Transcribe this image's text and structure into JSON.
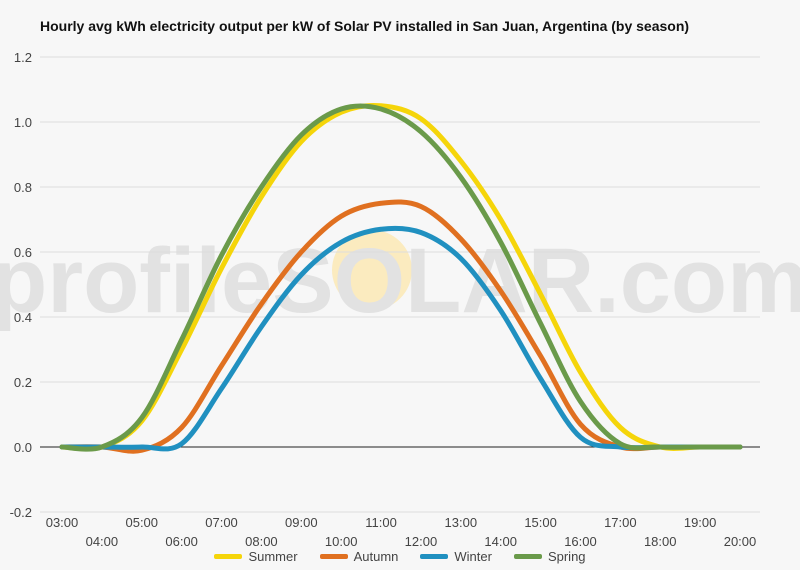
{
  "chart_data": {
    "type": "line",
    "title": "Hourly avg kWh electricity output per kW of Solar PV installed in San Juan, Argentina (by season)",
    "xlabel": "",
    "ylabel": "",
    "x": [
      "03:00",
      "04:00",
      "05:00",
      "06:00",
      "07:00",
      "08:00",
      "09:00",
      "10:00",
      "11:00",
      "12:00",
      "13:00",
      "14:00",
      "15:00",
      "16:00",
      "17:00",
      "18:00",
      "19:00",
      "20:00"
    ],
    "ylim": [
      -0.2,
      1.2
    ],
    "yticks": [
      "1.2",
      "1.0",
      "0.8",
      "0.6",
      "0.4",
      "0.2",
      "0.0",
      "-0.2"
    ],
    "grid": true,
    "legend_position": "bottom",
    "series": [
      {
        "name": "Summer",
        "color": "#f5d50a",
        "values": [
          0.0,
          0.0,
          0.08,
          0.3,
          0.55,
          0.77,
          0.94,
          1.03,
          1.05,
          1.01,
          0.88,
          0.7,
          0.47,
          0.23,
          0.06,
          0.0,
          0.0,
          0.0
        ]
      },
      {
        "name": "Autumn",
        "color": "#e07020",
        "values": [
          0.0,
          0.0,
          -0.01,
          0.06,
          0.25,
          0.44,
          0.6,
          0.71,
          0.75,
          0.74,
          0.64,
          0.48,
          0.28,
          0.07,
          0.0,
          0.0,
          0.0,
          0.0
        ]
      },
      {
        "name": "Winter",
        "color": "#2090c0",
        "values": [
          0.0,
          0.0,
          0.0,
          0.01,
          0.18,
          0.37,
          0.53,
          0.63,
          0.67,
          0.66,
          0.58,
          0.42,
          0.21,
          0.03,
          0.0,
          0.0,
          0.0,
          0.0
        ]
      },
      {
        "name": "Spring",
        "color": "#6a9a4a",
        "values": [
          0.0,
          0.0,
          0.09,
          0.33,
          0.59,
          0.8,
          0.96,
          1.04,
          1.04,
          0.97,
          0.83,
          0.63,
          0.38,
          0.14,
          0.01,
          0.0,
          0.0,
          0.0
        ]
      }
    ],
    "watermark": "profileSOLAR.com"
  }
}
